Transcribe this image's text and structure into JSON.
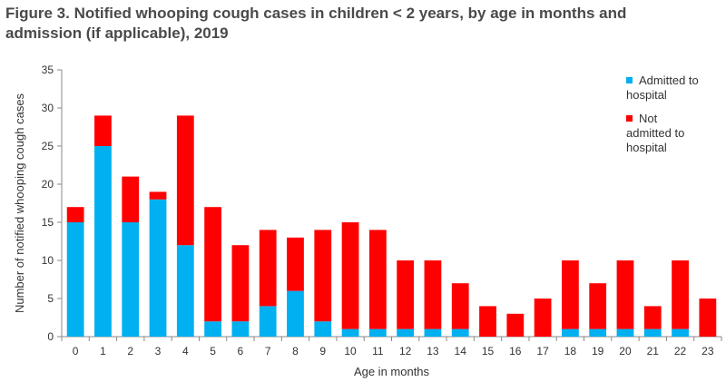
{
  "title_line1": "Figure 3. Notified whooping cough cases in children < 2 years, by age in months and",
  "title_line2": "admission (if applicable), 2019",
  "chart_data": {
    "type": "bar",
    "stacked": true,
    "xlabel": "Age in months",
    "ylabel": "Number of notified whooping cough cases",
    "ylim": [
      0,
      35
    ],
    "yticks": [
      0,
      5,
      10,
      15,
      20,
      25,
      30,
      35
    ],
    "categories": [
      "0",
      "1",
      "2",
      "3",
      "4",
      "5",
      "6",
      "7",
      "8",
      "9",
      "10",
      "11",
      "12",
      "13",
      "14",
      "15",
      "16",
      "17",
      "18",
      "19",
      "20",
      "21",
      "22",
      "23"
    ],
    "series": [
      {
        "name": "Admitted to hospital",
        "color": "#00b0f0",
        "values": [
          15,
          25,
          15,
          18,
          12,
          2,
          2,
          4,
          6,
          2,
          1,
          1,
          1,
          1,
          1,
          0,
          0,
          0,
          1,
          1,
          1,
          1,
          1,
          0
        ]
      },
      {
        "name": "Not admitted to hospital",
        "color": "#ff0000",
        "values": [
          2,
          4,
          6,
          1,
          17,
          15,
          10,
          10,
          7,
          12,
          14,
          13,
          9,
          9,
          6,
          4,
          3,
          5,
          9,
          6,
          9,
          3,
          9,
          5
        ]
      }
    ],
    "legend": {
      "position": "top-right",
      "entries": [
        {
          "lines": [
            "Admitted to",
            "hospital"
          ],
          "color": "#00b0f0"
        },
        {
          "lines": [
            "Not",
            "admitted to",
            "hospital"
          ],
          "color": "#ff0000"
        }
      ]
    },
    "grid": false
  }
}
